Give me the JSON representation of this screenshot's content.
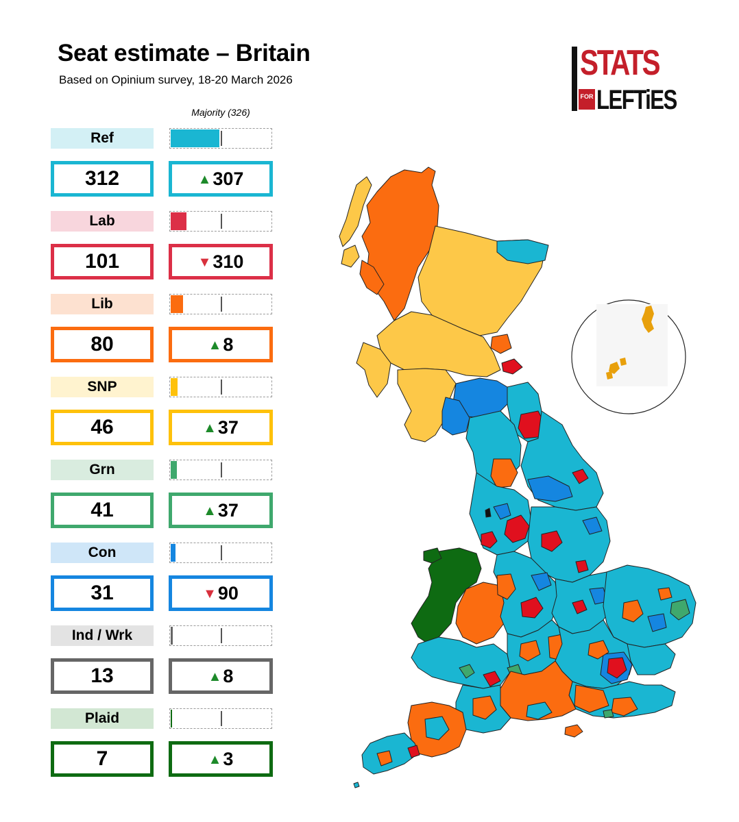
{
  "title": "Seat estimate – Britain",
  "subtitle": "Based on Opinium survey, 18-20 March 2026",
  "majority_label": "Majority (326)",
  "majority_seats": 326,
  "scale_max_seats": 650,
  "logo": {
    "line1": "STATS",
    "for": "FOR",
    "line2": "LEFTiES"
  },
  "parties": [
    {
      "name": "Ref",
      "seats": "312",
      "seat_count": 312,
      "change": "307",
      "direction": "up",
      "color": "#1ab6d2",
      "label_bg": "#d3f0f5"
    },
    {
      "name": "Lab",
      "seats": "101",
      "seat_count": 101,
      "change": "310",
      "direction": "down",
      "color": "#dc2f47",
      "label_bg": "#f8d6dd"
    },
    {
      "name": "Lib",
      "seats": "80",
      "seat_count": 80,
      "change": "8",
      "direction": "up",
      "color": "#fb6c10",
      "label_bg": "#fde1d0"
    },
    {
      "name": "SNP",
      "seats": "46",
      "seat_count": 46,
      "change": "37",
      "direction": "up",
      "color": "#fec10b",
      "label_bg": "#fff3cf"
    },
    {
      "name": "Grn",
      "seats": "41",
      "seat_count": 41,
      "change": "37",
      "direction": "up",
      "color": "#3fa86d",
      "label_bg": "#d9ecdf"
    },
    {
      "name": "Con",
      "seats": "31",
      "seat_count": 31,
      "change": "90",
      "direction": "down",
      "color": "#1586e0",
      "label_bg": "#cfe6f8"
    },
    {
      "name": "Ind / Wrk",
      "seats": "13",
      "seat_count": 13,
      "change": "8",
      "direction": "up",
      "color": "#666666",
      "label_bg": "#e3e3e3"
    },
    {
      "name": "Plaid",
      "seats": "7",
      "seat_count": 7,
      "change": "3",
      "direction": "up",
      "color": "#0e6b12",
      "label_bg": "#d2e7d3"
    }
  ],
  "map_colors": {
    "reform": "#1ab6d2",
    "labour": "#e0101e",
    "libdem": "#fb6c10",
    "snp": "#fdc848",
    "green": "#3fa86d",
    "conservative": "#1586e0",
    "plaid": "#0e6b12",
    "independent": "#111111",
    "shetland": "#e8a00c"
  }
}
